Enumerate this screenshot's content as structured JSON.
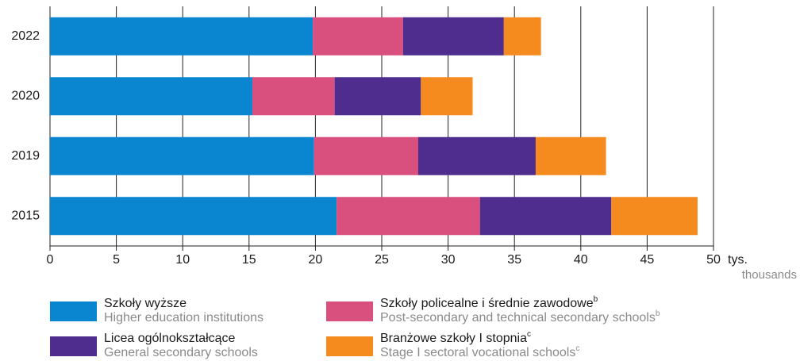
{
  "chart_data": {
    "type": "stacked_barh",
    "categories": [
      "2022",
      "2020",
      "2019",
      "2015"
    ],
    "series": [
      {
        "name": "Szkoły wyższe",
        "name_en": "Higher education institutions",
        "color": "#0a86d0",
        "values": [
          19.8,
          15.25,
          19.9,
          21.6
        ]
      },
      {
        "name": "Szkoły policealne i średnie zawodowe",
        "name_en": "Post-secondary and technical secondary schools",
        "note": "b",
        "color": "#d94f7e",
        "values": [
          6.8,
          6.2,
          7.85,
          10.8
        ]
      },
      {
        "name": "Licea ogólnokształcące",
        "name_en": "General secondary schools",
        "color": "#4f2d8f",
        "values": [
          7.6,
          6.5,
          8.85,
          9.9
        ]
      },
      {
        "name": "Branżowe szkoły I stopnia",
        "name_en": "Stage I sectoral vocational schools",
        "note": "c",
        "color": "#f58b1f",
        "values": [
          2.8,
          3.9,
          5.3,
          6.5
        ]
      }
    ],
    "xlim": [
      0,
      50
    ],
    "xticks": [
      0,
      5,
      10,
      15,
      20,
      25,
      30,
      35,
      40,
      45,
      50
    ],
    "x_unit": "tys.",
    "x_unit_en": "thousands",
    "grid": true
  }
}
